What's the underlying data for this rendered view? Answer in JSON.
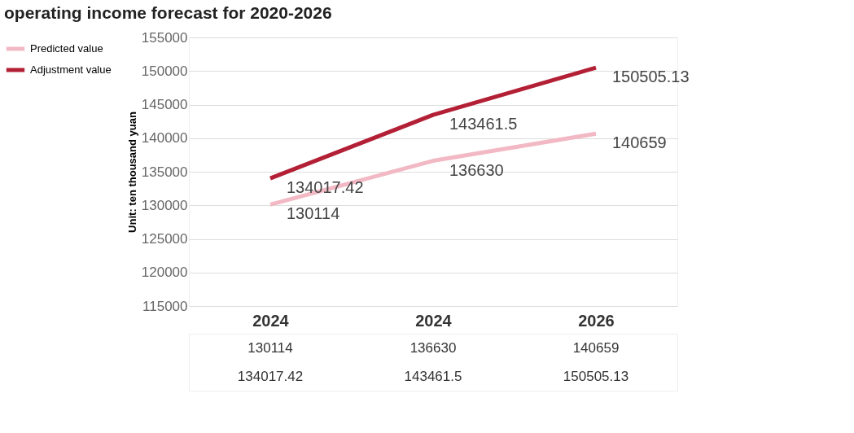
{
  "chart_data": {
    "type": "line",
    "title": "operating income forecast for 2020-2026",
    "ylabel": "Unit: ten thousand yuan",
    "categories": [
      "2024",
      "2024",
      "2026"
    ],
    "series": [
      {
        "name": "Predicted value",
        "color": "#f2b8c3",
        "values": [
          130114,
          136630,
          140659
        ],
        "value_labels": [
          "130114",
          "136630",
          "140659"
        ]
      },
      {
        "name": "Adjustment value",
        "color": "#b32036",
        "values": [
          134017.42,
          143461.5,
          150505.13
        ],
        "value_labels": [
          "134017.42",
          "143461.5",
          "150505.13"
        ]
      }
    ],
    "ylim": [
      115000,
      155000
    ],
    "yticks": [
      115000,
      120000,
      125000,
      130000,
      135000,
      140000,
      145000,
      150000,
      155000
    ],
    "annotations": [
      "130114",
      "136630",
      "140659",
      "134017.42",
      "143461.5",
      "150505.13"
    ],
    "grid": "y",
    "legend": "left",
    "marker": "none",
    "line_style": "solid"
  }
}
